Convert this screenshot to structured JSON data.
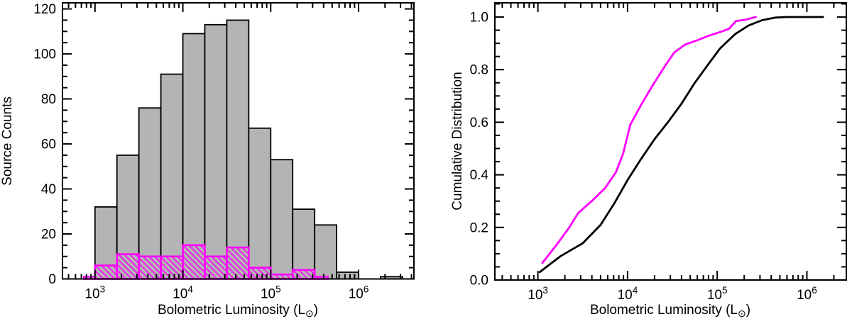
{
  "figure": {
    "background": "#ffffff",
    "accent_color": "#ff00ff",
    "bar_fill_color": "#b4b4b4",
    "line_color": "#000000"
  },
  "chart_data": [
    {
      "type": "bar",
      "subtype": "log-histogram",
      "ylabel": "Source Counts",
      "xlabel_parts": {
        "pre": "Bolometric Luminosity  (L",
        "sun": "⊙",
        "post": ")"
      },
      "x_scale": "log10",
      "x_range_log10": [
        2.63,
        6.63
      ],
      "y_range": [
        0,
        122.7
      ],
      "x_major_tick_base": "10",
      "x_major_tick_exponents": [
        "3",
        "4",
        "5",
        "6"
      ],
      "y_major_tick_values": [
        0,
        20,
        40,
        60,
        80,
        100,
        120
      ],
      "y_major_tick_labels": [
        "0",
        "20",
        "40",
        "60",
        "80",
        "100",
        "120"
      ],
      "y_minor_step": 5,
      "grid": false,
      "series": [
        {
          "name": "all-sources-histogram",
          "style": "filled-bars",
          "outline": "#000000",
          "fill": "#b4b4b4",
          "bin_edges_log10": [
            3.0,
            3.25,
            3.5,
            3.75,
            4.0,
            4.25,
            4.5,
            4.75,
            5.0,
            5.25,
            5.5,
            5.75,
            6.0,
            6.25,
            6.5
          ],
          "counts": [
            32,
            55,
            76,
            91,
            109,
            113,
            115,
            67,
            53,
            31,
            24,
            3,
            0,
            1
          ]
        },
        {
          "name": "subset-histogram",
          "style": "hatched-bars",
          "outline": "#ff00ff",
          "fill": "hatch",
          "bin_edges_log10": [
            2.875,
            3.0,
            3.25,
            3.5,
            3.75,
            4.0,
            4.25,
            4.5,
            4.75,
            5.0,
            5.25,
            5.5,
            5.65
          ],
          "counts": [
            1,
            6,
            11,
            10,
            10,
            15,
            10,
            14,
            5,
            2,
            4,
            1
          ]
        }
      ]
    },
    {
      "type": "line",
      "subtype": "cumulative-distribution",
      "ylabel": "Cumulative Distribution",
      "xlabel_parts": {
        "pre": "Bolometric Luminosity  (L",
        "sun": "⊙",
        "post": ")"
      },
      "x_scale": "log10",
      "x_range_log10": [
        2.52,
        6.44
      ],
      "y_range": [
        0,
        1.054
      ],
      "x_major_tick_base": "10",
      "x_major_tick_exponents": [
        "3",
        "4",
        "5",
        "6"
      ],
      "y_major_tick_values": [
        0,
        0.2,
        0.4,
        0.6,
        0.8,
        1.0
      ],
      "y_major_tick_labels": [
        "0.0",
        "0.2",
        "0.4",
        "0.6",
        "0.8",
        "1.0"
      ],
      "y_minor_step": 0.05,
      "grid": false,
      "series": [
        {
          "name": "all-sources-cdf",
          "color": "#000000",
          "points_log10x_y": [
            [
              3.02,
              0.03
            ],
            [
              3.25,
              0.09
            ],
            [
              3.5,
              0.14
            ],
            [
              3.7,
              0.21
            ],
            [
              3.85,
              0.29
            ],
            [
              4.0,
              0.38
            ],
            [
              4.15,
              0.46
            ],
            [
              4.3,
              0.535
            ],
            [
              4.45,
              0.6
            ],
            [
              4.6,
              0.67
            ],
            [
              4.75,
              0.75
            ],
            [
              4.9,
              0.82
            ],
            [
              5.03,
              0.88
            ],
            [
              5.2,
              0.935
            ],
            [
              5.35,
              0.968
            ],
            [
              5.5,
              0.988
            ],
            [
              5.65,
              0.998
            ],
            [
              5.78,
              1.0
            ],
            [
              6.18,
              1.0
            ]
          ]
        },
        {
          "name": "subset-cdf",
          "color": "#ff00ff",
          "points_log10x_y": [
            [
              3.05,
              0.065
            ],
            [
              3.2,
              0.13
            ],
            [
              3.35,
              0.2
            ],
            [
              3.45,
              0.255
            ],
            [
              3.6,
              0.3
            ],
            [
              3.75,
              0.35
            ],
            [
              3.87,
              0.41
            ],
            [
              3.95,
              0.48
            ],
            [
              4.03,
              0.59
            ],
            [
              4.15,
              0.665
            ],
            [
              4.28,
              0.74
            ],
            [
              4.41,
              0.81
            ],
            [
              4.52,
              0.865
            ],
            [
              4.64,
              0.895
            ],
            [
              4.78,
              0.912
            ],
            [
              4.9,
              0.928
            ],
            [
              5.05,
              0.945
            ],
            [
              5.13,
              0.955
            ],
            [
              5.21,
              0.985
            ],
            [
              5.32,
              0.99
            ],
            [
              5.43,
              1.0
            ]
          ]
        }
      ]
    }
  ]
}
